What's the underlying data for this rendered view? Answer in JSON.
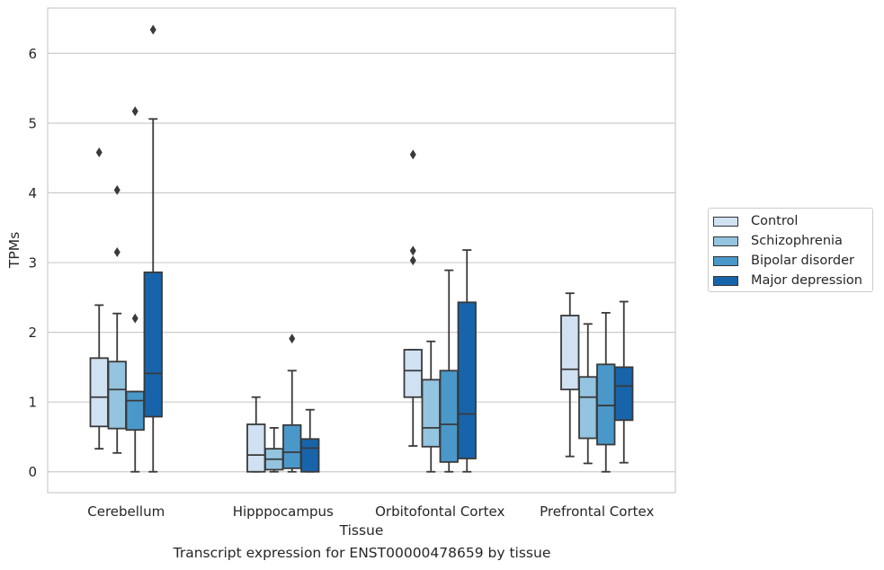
{
  "chart_data": {
    "type": "box",
    "caption": "Transcript expression for ENST00000478659 by tissue",
    "xlabel": "Tissue",
    "ylabel": "TPMs",
    "ylim": [
      -0.3,
      6.65
    ],
    "yticks": [
      0,
      1,
      2,
      3,
      4,
      5,
      6
    ],
    "grid": true,
    "legend_position": "right",
    "categories": [
      "Cerebellum",
      "Hipppocampus",
      "Orbitofontal Cortex",
      "Prefrontal Cortex"
    ],
    "series": [
      {
        "name": "Control",
        "color": "#d0e1f2",
        "boxes": [
          {
            "whislo": 0.33,
            "q1": 0.65,
            "med": 1.07,
            "q3": 1.63,
            "whishi": 2.39,
            "fliers": [
              4.58
            ]
          },
          {
            "whislo": 0.0,
            "q1": 0.0,
            "med": 0.24,
            "q3": 0.68,
            "whishi": 1.07,
            "fliers": []
          },
          {
            "whislo": 0.37,
            "q1": 1.07,
            "med": 1.45,
            "q3": 1.75,
            "whishi": 1.75,
            "fliers": [
              3.03,
              3.17,
              4.55
            ]
          },
          {
            "whislo": 0.22,
            "q1": 1.18,
            "med": 1.47,
            "q3": 2.24,
            "whishi": 2.56,
            "fliers": []
          }
        ]
      },
      {
        "name": "Schizophrenia",
        "color": "#94c4df",
        "boxes": [
          {
            "whislo": 0.27,
            "q1": 0.62,
            "med": 1.18,
            "q3": 1.58,
            "whishi": 2.27,
            "fliers": [
              3.15,
              4.04
            ]
          },
          {
            "whislo": 0.0,
            "q1": 0.03,
            "med": 0.18,
            "q3": 0.33,
            "whishi": 0.63,
            "fliers": []
          },
          {
            "whislo": 0.0,
            "q1": 0.36,
            "med": 0.63,
            "q3": 1.32,
            "whishi": 1.87,
            "fliers": []
          },
          {
            "whislo": 0.12,
            "q1": 0.48,
            "med": 1.07,
            "q3": 1.36,
            "whishi": 2.12,
            "fliers": []
          }
        ]
      },
      {
        "name": "Bipolar disorder",
        "color": "#4a98c9",
        "boxes": [
          {
            "whislo": 0.0,
            "q1": 0.6,
            "med": 1.02,
            "q3": 1.15,
            "whishi": 1.15,
            "fliers": [
              2.2,
              5.17
            ]
          },
          {
            "whislo": 0.0,
            "q1": 0.05,
            "med": 0.28,
            "q3": 0.67,
            "whishi": 1.45,
            "fliers": [
              1.91
            ]
          },
          {
            "whislo": 0.0,
            "q1": 0.14,
            "med": 0.68,
            "q3": 1.45,
            "whishi": 2.89,
            "fliers": []
          },
          {
            "whislo": 0.0,
            "q1": 0.39,
            "med": 0.95,
            "q3": 1.54,
            "whishi": 2.28,
            "fliers": []
          }
        ]
      },
      {
        "name": "Major depression",
        "color": "#1764ab",
        "boxes": [
          {
            "whislo": 0.0,
            "q1": 0.79,
            "med": 1.41,
            "q3": 2.86,
            "whishi": 5.06,
            "fliers": [
              6.34
            ]
          },
          {
            "whislo": 0.0,
            "q1": 0.0,
            "med": 0.34,
            "q3": 0.47,
            "whishi": 0.89,
            "fliers": []
          },
          {
            "whislo": 0.0,
            "q1": 0.19,
            "med": 0.83,
            "q3": 2.43,
            "whishi": 3.18,
            "fliers": []
          },
          {
            "whislo": 0.13,
            "q1": 0.74,
            "med": 1.23,
            "q3": 1.5,
            "whishi": 2.44,
            "fliers": []
          }
        ]
      }
    ]
  }
}
